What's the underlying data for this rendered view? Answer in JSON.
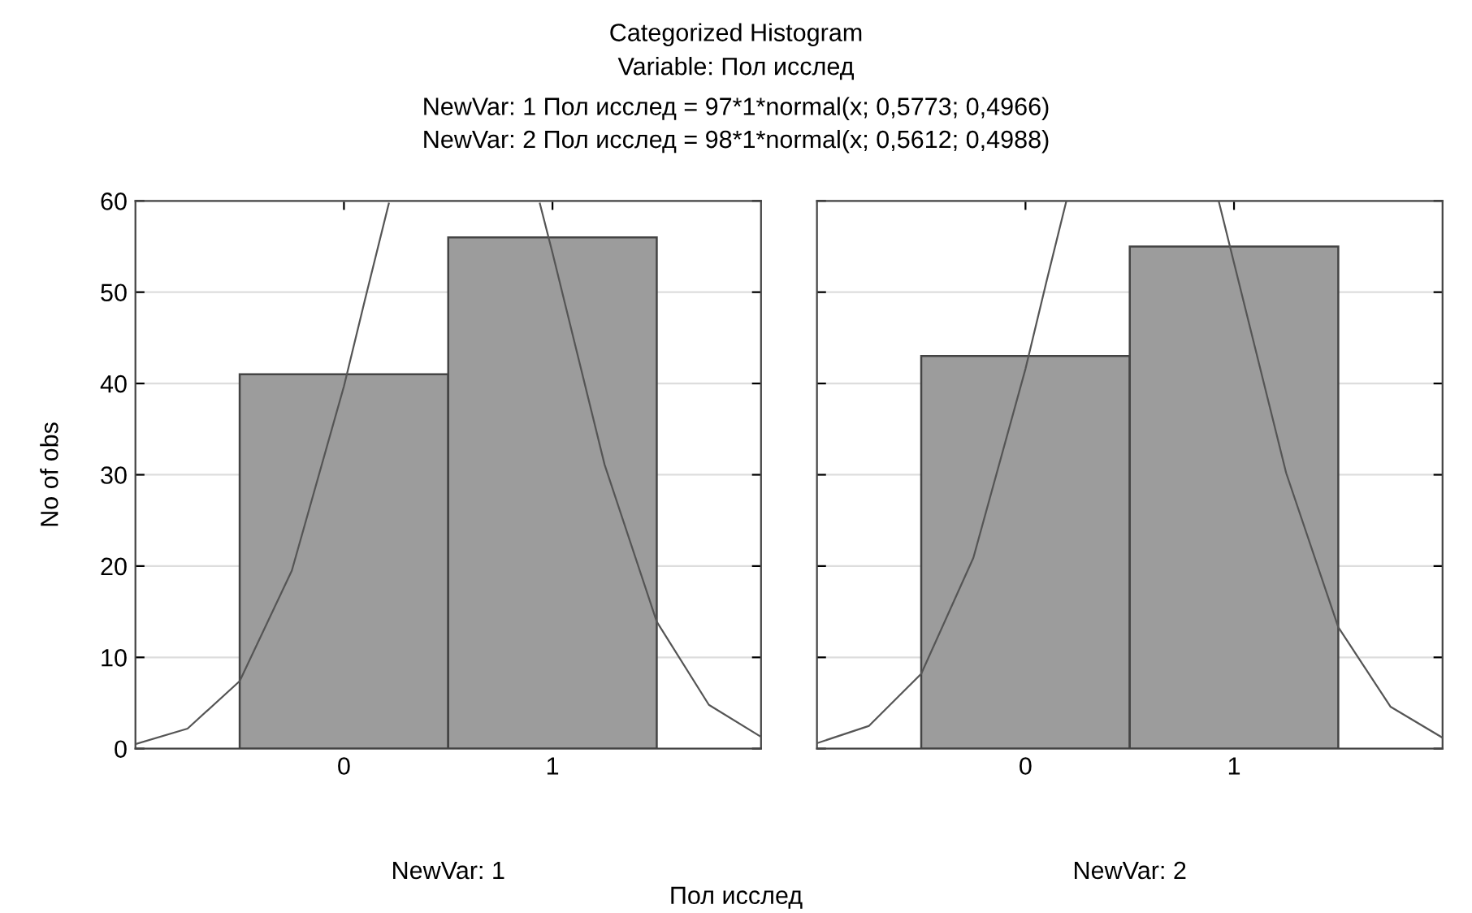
{
  "chart_data": [
    {
      "type": "histogram",
      "title": "Categorized Histogram",
      "subtitle": "Variable: Пол исслед",
      "annotations": [
        "NewVar: 1 Пол исслед = 97*1*normal(x; 0,5773; 0,4966)",
        "NewVar: 2 Пол исслед = 98*1*normal(x; 0,5612; 0,4988)",
        "Пол исслед"
      ],
      "xlabel": "NewVar: 1",
      "ylabel": "No of obs",
      "series": [
        {
          "bins": [
            -0.5,
            0.5,
            1.5
          ],
          "values": [
            41,
            56
          ],
          "color": "#9c9c9c"
        },
        {
          "type": "line",
          "x": [
            -1,
            -0.75,
            -0.5,
            -0.25,
            0,
            0.1,
            0.215,
            0.5773,
            0.9396,
            1,
            1.25,
            1.5,
            1.75,
            2
          ],
          "values": [
            0.5,
            2.2,
            7.4,
            19.5,
            39.7,
            49.1,
            59.7,
            null,
            59.7,
            54.3,
            31.1,
            13.9,
            4.8,
            1.3
          ],
          "color": "#555555"
        }
      ],
      "xlim": [
        -1,
        2
      ],
      "xticks": [
        0,
        1
      ],
      "ylim": [
        0,
        60
      ],
      "yticks": [
        0,
        10,
        20,
        30,
        40,
        50,
        60
      ],
      "grid": "y"
    },
    {
      "type": "histogram",
      "xlabel": "NewVar: 2",
      "series": [
        {
          "bins": [
            -0.5,
            0.5,
            1.5
          ],
          "values": [
            43,
            55
          ],
          "color": "#9c9c9c"
        },
        {
          "type": "line",
          "x": [
            -1,
            -0.75,
            -0.5,
            -0.25,
            0,
            0.1,
            0.195,
            0.5612,
            0.9274,
            1,
            1.25,
            1.5,
            1.75,
            2
          ],
          "values": [
            0.6,
            2.5,
            8.2,
            20.9,
            41.6,
            51.1,
            59.9,
            null,
            59.9,
            53.2,
            30.2,
            13.3,
            4.6,
            1.2
          ],
          "color": "#555555"
        }
      ],
      "xlim": [
        -1,
        2
      ],
      "xticks": [
        0,
        1
      ],
      "ylim": [
        0,
        60
      ],
      "yticks": [
        0,
        10,
        20,
        30,
        40,
        50,
        60
      ],
      "grid": "y",
      "tick_labels": "x"
    }
  ]
}
